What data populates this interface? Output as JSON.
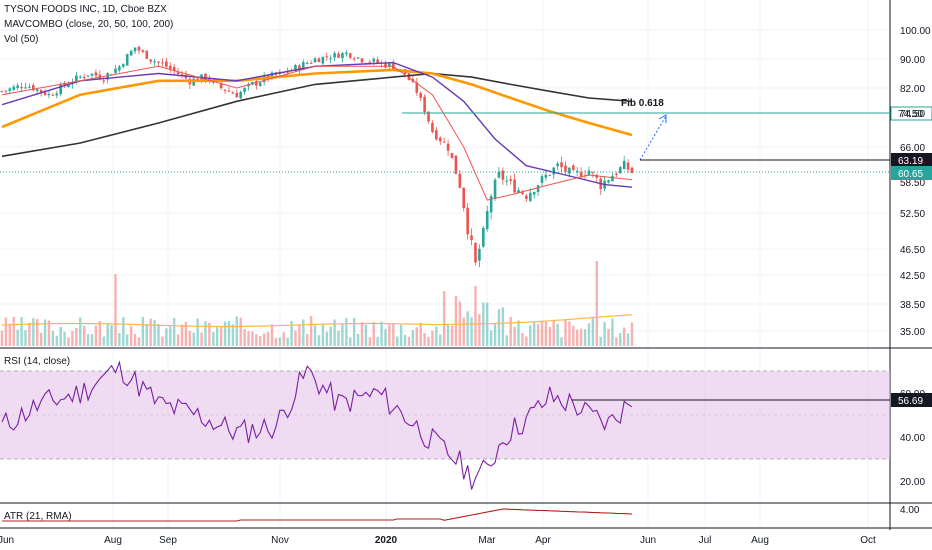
{
  "header": {
    "title": "TYSON FOODS INC, 1D, Cboe BZX",
    "indicator": "MAVCOMBO (close, 20, 50, 100, 200)",
    "volume": "Vol (50)"
  },
  "panes": {
    "rsi_label": "RSI (14, close)",
    "atr_label": "ATR (21, RMA)"
  },
  "annotations": {
    "fib_label": "Fib 0.618"
  },
  "price_tags": [
    {
      "value": "74.50",
      "color": "#26a69a",
      "text_color": "#131722"
    },
    {
      "value": "63.19",
      "color": "#131722",
      "text_color": "#ffffff"
    },
    {
      "value": "60.65",
      "color": "#26a69a",
      "text_color": "#ffffff"
    }
  ],
  "rsi_tag": {
    "value": "56.69"
  },
  "colors": {
    "up": "#26a69a",
    "down": "#ef5350",
    "ma20": "#ef5350",
    "ma50": "#673ab7",
    "ma100": "#ff9800",
    "ma200": "#333333",
    "rsi_line": "#7b1fa2",
    "rsi_band": "#e1bee7",
    "fib_line": "#26a69a"
  },
  "chart_data": {
    "type": "candlestick",
    "symbol": "TYSON FOODS INC",
    "interval": "1D",
    "y_ticks": [
      "100.00",
      "90.00",
      "82.00",
      "74.50",
      "66.00",
      "58.50",
      "52.50",
      "46.50",
      "42.50",
      "38.50",
      "35.00"
    ],
    "x_ticks": [
      "Jun",
      "Aug",
      "Sep",
      "Nov",
      "2020",
      "Mar",
      "Apr",
      "Jun",
      "Jul",
      "Aug",
      "Oct"
    ],
    "rsi_ticks": [
      "60.00",
      "40.00",
      "20.00"
    ],
    "atr_ticks": [
      "4.00"
    ],
    "fib_level": 74.5,
    "resistance": 63.19,
    "last_close": 60.65,
    "rsi_last": 56.69,
    "rsi_band": [
      30,
      70
    ],
    "close_path": [
      [
        0,
        81
      ],
      [
        6,
        83
      ],
      [
        12,
        80
      ],
      [
        18,
        84
      ],
      [
        22,
        86
      ],
      [
        26,
        85
      ],
      [
        30,
        88
      ],
      [
        34,
        94
      ],
      [
        38,
        90
      ],
      [
        42,
        88
      ],
      [
        45,
        86
      ],
      [
        48,
        84
      ],
      [
        52,
        85
      ],
      [
        56,
        82
      ],
      [
        60,
        80
      ],
      [
        64,
        83
      ],
      [
        68,
        85
      ],
      [
        72,
        86
      ],
      [
        76,
        88
      ],
      [
        80,
        90
      ],
      [
        84,
        91
      ],
      [
        88,
        92
      ],
      [
        92,
        90
      ],
      [
        96,
        89
      ],
      [
        100,
        88
      ],
      [
        103,
        86
      ],
      [
        106,
        81
      ],
      [
        110,
        70
      ],
      [
        114,
        66
      ],
      [
        117,
        58
      ],
      [
        119,
        50
      ],
      [
        121,
        44
      ],
      [
        123,
        49
      ],
      [
        125,
        56
      ],
      [
        127,
        60
      ],
      [
        130,
        58
      ],
      [
        134,
        56
      ],
      [
        138,
        59
      ],
      [
        142,
        62
      ],
      [
        146,
        60
      ],
      [
        150,
        61
      ],
      [
        153,
        58
      ],
      [
        156,
        60
      ],
      [
        159,
        62
      ],
      [
        161,
        60.65
      ]
    ],
    "mas": {
      "ma20": [
        [
          0,
          80
        ],
        [
          20,
          84
        ],
        [
          40,
          88
        ],
        [
          60,
          82
        ],
        [
          80,
          88
        ],
        [
          100,
          88
        ],
        [
          110,
          80
        ],
        [
          118,
          66
        ],
        [
          124,
          55
        ],
        [
          130,
          56
        ],
        [
          140,
          58
        ],
        [
          150,
          60
        ],
        [
          161,
          59
        ]
      ],
      "ma50": [
        [
          0,
          77
        ],
        [
          20,
          84
        ],
        [
          40,
          86
        ],
        [
          60,
          84
        ],
        [
          80,
          88
        ],
        [
          100,
          89
        ],
        [
          110,
          85
        ],
        [
          118,
          78
        ],
        [
          126,
          68
        ],
        [
          134,
          62
        ],
        [
          144,
          60
        ],
        [
          154,
          58
        ],
        [
          161,
          57.5
        ]
      ],
      "ma100": [
        [
          0,
          71
        ],
        [
          20,
          80
        ],
        [
          40,
          84
        ],
        [
          60,
          84
        ],
        [
          80,
          86
        ],
        [
          100,
          87
        ],
        [
          110,
          86
        ],
        [
          120,
          83
        ],
        [
          130,
          79
        ],
        [
          140,
          75
        ],
        [
          150,
          72
        ],
        [
          161,
          69
        ]
      ],
      "ma200": [
        [
          0,
          64
        ],
        [
          20,
          67
        ],
        [
          40,
          72
        ],
        [
          60,
          78
        ],
        [
          80,
          83
        ],
        [
          100,
          85
        ],
        [
          110,
          86
        ],
        [
          120,
          85
        ],
        [
          130,
          83
        ],
        [
          140,
          81
        ],
        [
          150,
          79
        ],
        [
          161,
          78
        ]
      ]
    },
    "rsi_path": [
      [
        0,
        45
      ],
      [
        10,
        55
      ],
      [
        20,
        60
      ],
      [
        30,
        72
      ],
      [
        40,
        55
      ],
      [
        50,
        50
      ],
      [
        60,
        42
      ],
      [
        70,
        45
      ],
      [
        78,
        70
      ],
      [
        86,
        55
      ],
      [
        96,
        60
      ],
      [
        104,
        48
      ],
      [
        110,
        38
      ],
      [
        116,
        30
      ],
      [
        120,
        22
      ],
      [
        124,
        25
      ],
      [
        128,
        40
      ],
      [
        134,
        48
      ],
      [
        140,
        58
      ],
      [
        146,
        55
      ],
      [
        150,
        50
      ],
      [
        155,
        46
      ],
      [
        161,
        56.69
      ]
    ]
  }
}
